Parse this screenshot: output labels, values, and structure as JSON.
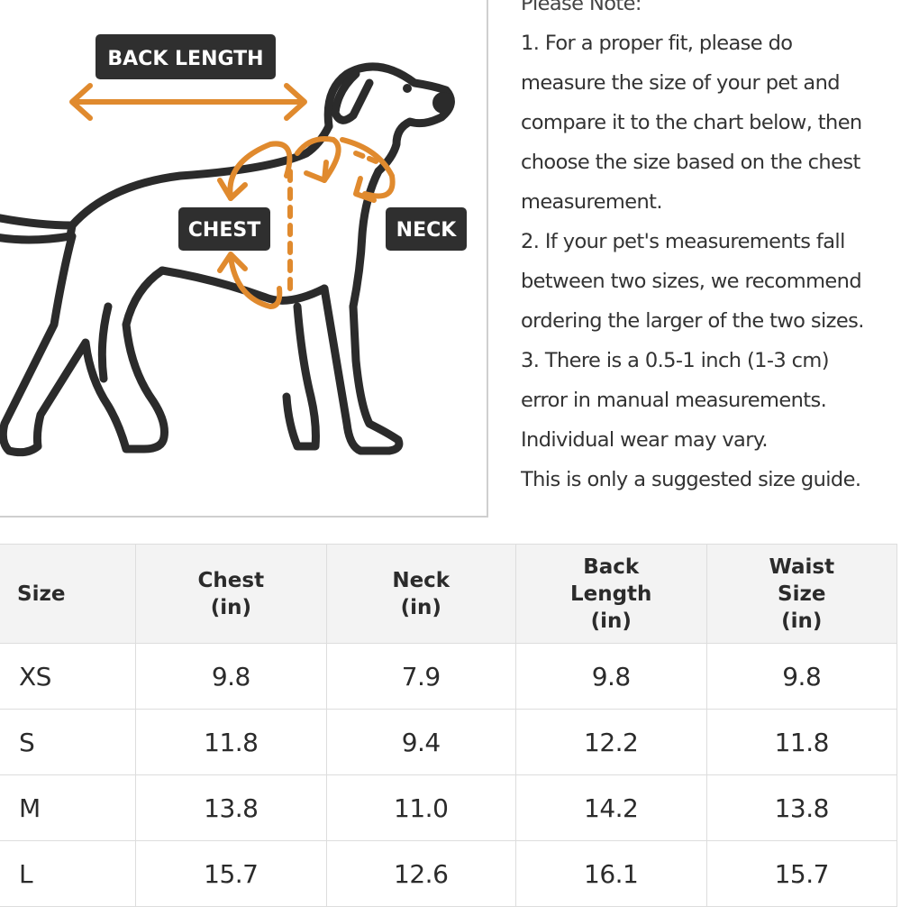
{
  "diagram": {
    "labels": {
      "back_length": "BACK LENGTH",
      "chest": "CHEST",
      "neck": "NECK"
    },
    "colors": {
      "arrow": "#e08a2e",
      "outline": "#2b2b2b",
      "label_bg": "#2f2f2f"
    },
    "icons": [
      "dog-outline-icon",
      "double-arrow-icon",
      "curved-arrow-icon"
    ]
  },
  "notes": {
    "lines": [
      "Please Note:",
      "1. For a proper fit, please do",
      "measure the size of your pet and",
      "compare it to the chart below, then",
      "choose the size based on the chest",
      "measurement.",
      "2. If your pet's measurements fall",
      "between two sizes, we recommend",
      "ordering the larger of the two sizes.",
      "3. There is a 0.5-1 inch (1-3 cm)",
      "error in manual measurements.",
      "Individual wear may vary.",
      "This is only a suggested size guide."
    ]
  },
  "table": {
    "headers": [
      [
        "Size"
      ],
      [
        "Chest",
        "(in)"
      ],
      [
        "Neck",
        "(in)"
      ],
      [
        "Back",
        "Length",
        "(in)"
      ],
      [
        "Waist",
        "Size",
        "(in)"
      ]
    ],
    "rows": [
      [
        "XS",
        "9.8",
        "7.9",
        "9.8",
        "9.8"
      ],
      [
        "S",
        "11.8",
        "9.4",
        "12.2",
        "11.8"
      ],
      [
        "M",
        "13.8",
        "11.0",
        "14.2",
        "13.8"
      ],
      [
        "L",
        "15.7",
        "12.6",
        "16.1",
        "15.7"
      ]
    ]
  }
}
